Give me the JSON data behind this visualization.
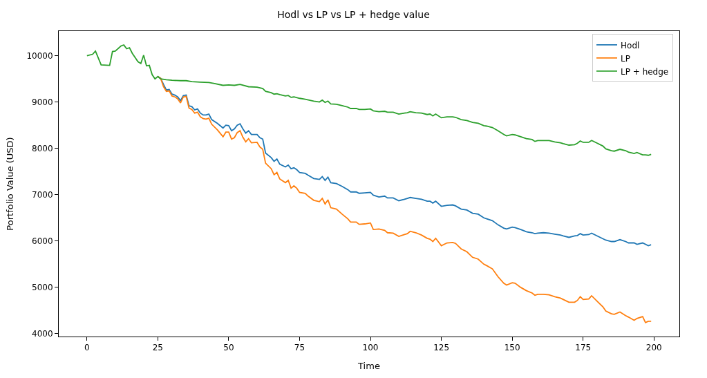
{
  "chart_data": {
    "type": "line",
    "title": "Hodl vs LP vs LP + hedge value",
    "xlabel": "Time",
    "ylabel": "Portfolio Value (USD)",
    "xlim": [
      -9.95,
      208.95
    ],
    "ylim": [
      3940,
      10530
    ],
    "xticks": [
      0,
      25,
      50,
      75,
      100,
      125,
      150,
      175,
      200
    ],
    "yticks": [
      4000,
      5000,
      6000,
      7000,
      8000,
      9000,
      10000
    ],
    "legend": "top right",
    "marker": "none",
    "line_style": "solid",
    "series": [
      {
        "name": "Hodl",
        "color": "#1f77b4",
        "x": [
          25,
          26,
          27,
          28,
          29,
          30,
          31,
          32,
          33,
          34,
          35,
          36,
          37,
          38,
          39,
          40,
          41,
          42,
          43,
          44,
          46,
          48,
          49,
          50,
          51,
          52,
          53,
          54,
          55,
          56,
          57,
          58,
          60,
          61,
          62,
          63,
          65,
          66,
          67,
          68,
          70,
          71,
          72,
          73,
          74,
          75,
          77,
          78,
          80,
          82,
          83,
          84,
          85,
          86,
          88,
          90,
          92,
          93,
          95,
          96,
          98,
          100,
          101,
          103,
          105,
          106,
          108,
          110,
          112,
          113,
          114,
          116,
          118,
          120,
          121,
          122,
          123,
          125,
          127,
          129,
          130,
          132,
          134,
          136,
          138,
          140,
          141,
          143,
          145,
          147,
          148,
          150,
          151,
          153,
          155,
          157,
          158,
          159,
          161,
          163,
          165,
          167,
          168,
          170,
          172,
          173,
          174,
          175,
          177,
          178,
          180,
          182,
          183,
          185,
          186,
          188,
          190,
          191,
          193,
          194,
          196,
          198,
          199
        ],
        "values": [
          9550,
          9510,
          9380,
          9260,
          9270,
          9170,
          9150,
          9110,
          9030,
          9140,
          9150,
          8920,
          8900,
          8830,
          8850,
          8760,
          8720,
          8720,
          8740,
          8620,
          8540,
          8440,
          8500,
          8490,
          8380,
          8420,
          8500,
          8530,
          8420,
          8330,
          8380,
          8300,
          8300,
          8230,
          8200,
          7900,
          7800,
          7720,
          7770,
          7660,
          7600,
          7640,
          7560,
          7580,
          7540,
          7480,
          7460,
          7420,
          7350,
          7330,
          7390,
          7310,
          7380,
          7260,
          7240,
          7180,
          7110,
          7060,
          7060,
          7030,
          7040,
          7050,
          6990,
          6950,
          6970,
          6930,
          6930,
          6870,
          6900,
          6920,
          6940,
          6920,
          6900,
          6860,
          6860,
          6820,
          6860,
          6750,
          6770,
          6780,
          6760,
          6690,
          6670,
          6600,
          6580,
          6500,
          6480,
          6440,
          6350,
          6280,
          6260,
          6300,
          6290,
          6250,
          6200,
          6180,
          6160,
          6170,
          6180,
          6170,
          6150,
          6130,
          6110,
          6080,
          6110,
          6120,
          6160,
          6130,
          6140,
          6170,
          6110,
          6050,
          6020,
          5990,
          5990,
          6030,
          5990,
          5960,
          5960,
          5930,
          5960,
          5900,
          5920
        ]
      },
      {
        "name": "LP",
        "color": "#ff7f0e",
        "x": [
          25,
          26,
          27,
          28,
          29,
          30,
          31,
          32,
          33,
          34,
          35,
          36,
          37,
          38,
          39,
          40,
          41,
          42,
          43,
          44,
          46,
          48,
          49,
          50,
          51,
          52,
          53,
          54,
          55,
          56,
          57,
          58,
          60,
          61,
          62,
          63,
          65,
          66,
          67,
          68,
          70,
          71,
          72,
          73,
          74,
          75,
          77,
          78,
          80,
          82,
          83,
          84,
          85,
          86,
          88,
          90,
          92,
          93,
          95,
          96,
          98,
          100,
          101,
          103,
          105,
          106,
          108,
          110,
          112,
          113,
          114,
          116,
          118,
          120,
          121,
          122,
          123,
          125,
          127,
          129,
          130,
          132,
          134,
          136,
          138,
          140,
          141,
          143,
          145,
          147,
          148,
          150,
          151,
          153,
          155,
          157,
          158,
          159,
          161,
          163,
          165,
          167,
          168,
          170,
          172,
          173,
          174,
          175,
          177,
          178,
          180,
          182,
          183,
          185,
          186,
          188,
          190,
          191,
          193,
          194,
          196,
          197,
          198,
          199
        ],
        "values": [
          9550,
          9510,
          9330,
          9230,
          9240,
          9130,
          9110,
          9070,
          8980,
          9110,
          9120,
          8870,
          8840,
          8760,
          8780,
          8680,
          8640,
          8630,
          8650,
          8520,
          8400,
          8250,
          8350,
          8350,
          8200,
          8230,
          8340,
          8380,
          8240,
          8140,
          8210,
          8120,
          8130,
          8030,
          7980,
          7680,
          7560,
          7430,
          7480,
          7340,
          7260,
          7310,
          7140,
          7190,
          7140,
          7050,
          7030,
          6970,
          6880,
          6850,
          6920,
          6800,
          6890,
          6720,
          6690,
          6580,
          6480,
          6410,
          6410,
          6360,
          6370,
          6390,
          6250,
          6260,
          6230,
          6180,
          6170,
          6100,
          6140,
          6160,
          6210,
          6180,
          6130,
          6060,
          6040,
          5990,
          6060,
          5900,
          5960,
          5970,
          5950,
          5830,
          5770,
          5650,
          5610,
          5500,
          5470,
          5400,
          5230,
          5090,
          5050,
          5100,
          5090,
          5000,
          4930,
          4880,
          4830,
          4850,
          4850,
          4840,
          4800,
          4770,
          4740,
          4680,
          4680,
          4720,
          4800,
          4740,
          4750,
          4820,
          4700,
          4580,
          4490,
          4430,
          4420,
          4470,
          4390,
          4360,
          4290,
          4330,
          4370,
          4240,
          4270,
          4270
        ]
      },
      {
        "name": "LP + hedge",
        "color": "#2ca02c",
        "x": [
          0,
          2,
          3,
          5,
          8,
          9,
          10,
          12,
          13,
          14,
          15,
          16,
          18,
          19,
          20,
          21,
          22,
          23,
          24,
          25,
          26,
          28,
          30,
          33,
          35,
          37,
          40,
          43,
          45,
          48,
          50,
          52,
          54,
          57,
          60,
          62,
          63,
          65,
          66,
          67,
          68,
          70,
          71,
          72,
          73,
          75,
          77,
          80,
          82,
          83,
          84,
          85,
          86,
          88,
          90,
          92,
          93,
          95,
          96,
          98,
          100,
          101,
          103,
          105,
          106,
          108,
          110,
          112,
          113,
          114,
          116,
          118,
          120,
          121,
          122,
          123,
          125,
          127,
          129,
          130,
          132,
          134,
          136,
          138,
          140,
          141,
          143,
          145,
          147,
          148,
          150,
          151,
          153,
          155,
          157,
          158,
          159,
          161,
          163,
          165,
          167,
          168,
          170,
          172,
          173,
          174,
          175,
          177,
          178,
          180,
          182,
          183,
          185,
          186,
          188,
          190,
          191,
          193,
          194,
          196,
          197,
          198,
          199
        ],
        "values": [
          10000,
          10030,
          10100,
          9800,
          9790,
          10090,
          10100,
          10210,
          10230,
          10150,
          10170,
          10050,
          9870,
          9830,
          10010,
          9780,
          9790,
          9590,
          9500,
          9550,
          9500,
          9480,
          9470,
          9460,
          9460,
          9440,
          9430,
          9420,
          9400,
          9360,
          9370,
          9360,
          9380,
          9330,
          9320,
          9290,
          9230,
          9200,
          9170,
          9180,
          9160,
          9130,
          9140,
          9100,
          9110,
          9080,
          9060,
          9020,
          9000,
          9040,
          8990,
          9020,
          8960,
          8950,
          8920,
          8890,
          8860,
          8860,
          8840,
          8840,
          8850,
          8810,
          8790,
          8800,
          8780,
          8780,
          8740,
          8760,
          8770,
          8790,
          8770,
          8760,
          8730,
          8740,
          8700,
          8740,
          8660,
          8680,
          8680,
          8670,
          8620,
          8600,
          8560,
          8540,
          8490,
          8480,
          8450,
          8380,
          8300,
          8270,
          8300,
          8290,
          8250,
          8210,
          8190,
          8150,
          8170,
          8170,
          8170,
          8140,
          8120,
          8100,
          8070,
          8080,
          8110,
          8160,
          8130,
          8130,
          8170,
          8110,
          8050,
          7990,
          7950,
          7940,
          7980,
          7950,
          7920,
          7890,
          7910,
          7860,
          7860,
          7850,
          7870
        ]
      }
    ]
  }
}
